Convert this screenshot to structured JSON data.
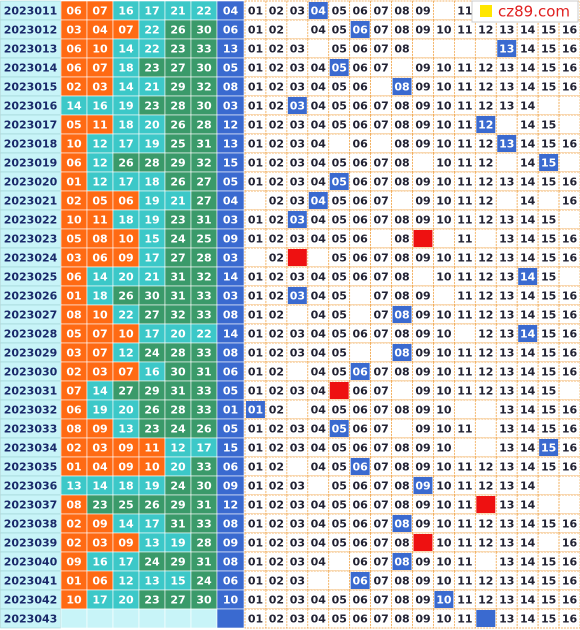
{
  "logo": "cz89.com",
  "rows": [
    {
      "issue": "2023011",
      "reds": [
        "06",
        "07",
        "16",
        "17",
        "21",
        "22"
      ],
      "blue": "04",
      "trend": [
        "01",
        "02",
        "03",
        {
          "text": "04",
          "mark": "blue"
        },
        "05",
        "06",
        "07",
        "08",
        "09",
        null,
        "11",
        null,
        null,
        null,
        null,
        null
      ]
    },
    {
      "issue": "2023012",
      "reds": [
        "03",
        "04",
        "07",
        "22",
        "26",
        "30"
      ],
      "blue": "06",
      "trend": [
        "01",
        "02",
        null,
        "04",
        "05",
        {
          "text": "06",
          "mark": "blue"
        },
        "07",
        "08",
        "09",
        "10",
        "11",
        "12",
        "13",
        "14",
        "15",
        "16"
      ]
    },
    {
      "issue": "2023013",
      "reds": [
        "06",
        "10",
        "14",
        "22",
        "23",
        "33"
      ],
      "blue": "13",
      "trend": [
        "01",
        "02",
        "03",
        null,
        "05",
        "06",
        "07",
        "08",
        null,
        null,
        null,
        null,
        {
          "text": "13",
          "mark": "blue"
        },
        "14",
        "15",
        "16"
      ]
    },
    {
      "issue": "2023014",
      "reds": [
        "06",
        "07",
        "18",
        "23",
        "27",
        "30"
      ],
      "blue": "05",
      "trend": [
        "01",
        "02",
        "03",
        "04",
        {
          "text": "05",
          "mark": "blue"
        },
        "06",
        "07",
        null,
        "09",
        "10",
        "11",
        "12",
        "13",
        "14",
        "15",
        "16"
      ]
    },
    {
      "issue": "2023015",
      "reds": [
        "02",
        "03",
        "14",
        "21",
        "29",
        "32"
      ],
      "blue": "08",
      "trend": [
        "01",
        "02",
        "03",
        "04",
        "05",
        "06",
        null,
        {
          "text": "08",
          "mark": "blue"
        },
        "09",
        "10",
        "11",
        "12",
        "13",
        "14",
        "15",
        "16"
      ]
    },
    {
      "issue": "2023016",
      "reds": [
        "14",
        "16",
        "19",
        "23",
        "28",
        "30"
      ],
      "blue": "03",
      "trend": [
        "01",
        "02",
        {
          "text": "03",
          "mark": "blue"
        },
        "04",
        "05",
        "06",
        "07",
        "08",
        "09",
        "10",
        "11",
        "12",
        "13",
        "14",
        null,
        null
      ]
    },
    {
      "issue": "2023017",
      "reds": [
        "05",
        "11",
        "18",
        "20",
        "26",
        "28"
      ],
      "blue": "12",
      "trend": [
        "01",
        "02",
        "03",
        "04",
        "05",
        "06",
        "07",
        "08",
        "09",
        "10",
        "11",
        {
          "text": "12",
          "mark": "blue"
        },
        null,
        "14",
        "15",
        null
      ]
    },
    {
      "issue": "2023018",
      "reds": [
        "10",
        "12",
        "17",
        "19",
        "25",
        "31"
      ],
      "blue": "13",
      "trend": [
        "01",
        "02",
        "03",
        "04",
        null,
        "06",
        null,
        "08",
        "09",
        "10",
        "11",
        "12",
        {
          "text": "13",
          "mark": "blue"
        },
        "14",
        "15",
        "16"
      ]
    },
    {
      "issue": "2023019",
      "reds": [
        "06",
        "12",
        "26",
        "28",
        "29",
        "32"
      ],
      "blue": "15",
      "trend": [
        "01",
        "02",
        "03",
        "04",
        "05",
        "06",
        "07",
        "08",
        null,
        "10",
        "11",
        "12",
        null,
        "14",
        {
          "text": "15",
          "mark": "blue"
        },
        null
      ]
    },
    {
      "issue": "2023020",
      "reds": [
        "01",
        "12",
        "17",
        "18",
        "26",
        "27"
      ],
      "blue": "05",
      "trend": [
        "01",
        "02",
        "03",
        "04",
        {
          "text": "05",
          "mark": "blue"
        },
        "06",
        "07",
        "08",
        "09",
        "10",
        "11",
        "12",
        "13",
        "14",
        "15",
        "16"
      ]
    },
    {
      "issue": "2023021",
      "reds": [
        "02",
        "05",
        "06",
        "19",
        "21",
        "27"
      ],
      "blue": "04",
      "trend": [
        null,
        "02",
        "03",
        {
          "text": "04",
          "mark": "blue"
        },
        "05",
        "06",
        "07",
        null,
        "09",
        "10",
        "11",
        "12",
        null,
        "14",
        null,
        "16"
      ]
    },
    {
      "issue": "2023022",
      "reds": [
        "10",
        "11",
        "18",
        "19",
        "23",
        "31"
      ],
      "blue": "03",
      "trend": [
        "01",
        "02",
        {
          "text": "03",
          "mark": "blue"
        },
        "04",
        "05",
        "06",
        "07",
        "08",
        "09",
        "10",
        "11",
        "12",
        "13",
        "14",
        "15",
        null
      ]
    },
    {
      "issue": "2023023",
      "reds": [
        "05",
        "08",
        "10",
        "15",
        "24",
        "25"
      ],
      "blue": "09",
      "trend": [
        "01",
        "02",
        "03",
        "04",
        "05",
        "06",
        null,
        "08",
        {
          "mark": "red"
        },
        null,
        "11",
        null,
        "13",
        "14",
        "15",
        "16"
      ]
    },
    {
      "issue": "2023024",
      "reds": [
        "03",
        "06",
        "09",
        "17",
        "27",
        "28"
      ],
      "blue": "03",
      "trend": [
        null,
        "02",
        {
          "mark": "red"
        },
        null,
        "05",
        "06",
        "07",
        "08",
        "09",
        "10",
        "11",
        "12",
        "13",
        "14",
        "15",
        "16"
      ]
    },
    {
      "issue": "2023025",
      "reds": [
        "06",
        "14",
        "20",
        "21",
        "31",
        "32"
      ],
      "blue": "14",
      "trend": [
        "01",
        "02",
        "03",
        "04",
        "05",
        "06",
        "07",
        "08",
        null,
        "10",
        "11",
        "12",
        "13",
        {
          "text": "14",
          "mark": "blue"
        },
        "15",
        null
      ]
    },
    {
      "issue": "2023026",
      "reds": [
        "01",
        "18",
        "26",
        "30",
        "31",
        "33"
      ],
      "blue": "03",
      "trend": [
        "01",
        "02",
        {
          "text": "03",
          "mark": "blue"
        },
        "04",
        "05",
        null,
        "07",
        "08",
        "09",
        null,
        "11",
        "12",
        "13",
        "14",
        "15",
        "16"
      ]
    },
    {
      "issue": "2023027",
      "reds": [
        "08",
        "10",
        "22",
        "27",
        "32",
        "33"
      ],
      "blue": "08",
      "trend": [
        "01",
        "02",
        null,
        "04",
        "05",
        null,
        "07",
        {
          "text": "08",
          "mark": "blue"
        },
        "09",
        "10",
        "11",
        "12",
        "13",
        "14",
        "15",
        "16"
      ]
    },
    {
      "issue": "2023028",
      "reds": [
        "05",
        "07",
        "10",
        "17",
        "20",
        "22"
      ],
      "blue": "14",
      "trend": [
        "01",
        "02",
        "03",
        "04",
        "05",
        "06",
        "07",
        "08",
        "09",
        "10",
        null,
        "12",
        "13",
        {
          "text": "14",
          "mark": "blue"
        },
        "15",
        "16"
      ]
    },
    {
      "issue": "2023029",
      "reds": [
        "03",
        "07",
        "12",
        "24",
        "28",
        "33"
      ],
      "blue": "08",
      "trend": [
        "01",
        "02",
        "03",
        "04",
        "05",
        null,
        null,
        {
          "text": "08",
          "mark": "blue"
        },
        "09",
        "10",
        "11",
        "12",
        "13",
        "14",
        "15",
        "16"
      ]
    },
    {
      "issue": "2023030",
      "reds": [
        "02",
        "03",
        "07",
        "16",
        "30",
        "31"
      ],
      "blue": "06",
      "trend": [
        "01",
        "02",
        null,
        "04",
        "05",
        {
          "text": "06",
          "mark": "blue"
        },
        "07",
        "08",
        "09",
        "10",
        "11",
        "12",
        "13",
        "14",
        "15",
        "16"
      ]
    },
    {
      "issue": "2023031",
      "reds": [
        "07",
        "14",
        "27",
        "29",
        "31",
        "33"
      ],
      "blue": "05",
      "trend": [
        "01",
        "02",
        "03",
        "04",
        {
          "mark": "red"
        },
        "06",
        "07",
        null,
        "09",
        "10",
        "11",
        "12",
        "13",
        "14",
        "15",
        null
      ]
    },
    {
      "issue": "2023032",
      "reds": [
        "06",
        "19",
        "20",
        "26",
        "28",
        "33"
      ],
      "blue": "01",
      "trend": [
        {
          "text": "01",
          "mark": "blue"
        },
        "02",
        null,
        "04",
        "05",
        "06",
        "07",
        "08",
        "09",
        "10",
        null,
        null,
        "13",
        "14",
        "15",
        "16"
      ]
    },
    {
      "issue": "2023033",
      "reds": [
        "08",
        "09",
        "13",
        "23",
        "24",
        "26"
      ],
      "blue": "05",
      "trend": [
        "01",
        "02",
        "03",
        "04",
        {
          "text": "05",
          "mark": "blue"
        },
        "06",
        "07",
        null,
        "09",
        "10",
        "11",
        null,
        "13",
        "14",
        "15",
        "16"
      ]
    },
    {
      "issue": "2023034",
      "reds": [
        "02",
        "03",
        "09",
        "11",
        "12",
        "17"
      ],
      "blue": "15",
      "trend": [
        "01",
        "02",
        "03",
        "04",
        "05",
        "06",
        "07",
        "08",
        "09",
        "10",
        null,
        null,
        "13",
        "14",
        {
          "text": "15",
          "mark": "blue"
        },
        "16"
      ]
    },
    {
      "issue": "2023035",
      "reds": [
        "01",
        "04",
        "09",
        "10",
        "20",
        "33"
      ],
      "blue": "06",
      "trend": [
        "01",
        "02",
        null,
        "04",
        "05",
        {
          "text": "06",
          "mark": "blue"
        },
        "07",
        "08",
        "09",
        "10",
        "11",
        "12",
        "13",
        "14",
        "15",
        "16"
      ]
    },
    {
      "issue": "2023036",
      "reds": [
        "13",
        "14",
        "18",
        "19",
        "24",
        "30"
      ],
      "blue": "09",
      "trend": [
        "01",
        "02",
        "03",
        null,
        "05",
        "06",
        "07",
        "08",
        {
          "text": "09",
          "mark": "blue"
        },
        "10",
        "11",
        "12",
        "13",
        "14",
        null,
        null
      ]
    },
    {
      "issue": "2023037",
      "reds": [
        "08",
        "23",
        "25",
        "26",
        "29",
        "31"
      ],
      "blue": "12",
      "trend": [
        "01",
        "02",
        "03",
        "04",
        "05",
        "06",
        "07",
        "08",
        "09",
        "10",
        "11",
        {
          "mark": "red"
        },
        "13",
        "14",
        null,
        null
      ]
    },
    {
      "issue": "2023038",
      "reds": [
        "02",
        "09",
        "14",
        "17",
        "31",
        "33"
      ],
      "blue": "08",
      "trend": [
        "01",
        "02",
        "03",
        "04",
        "05",
        "06",
        "07",
        {
          "text": "08",
          "mark": "blue"
        },
        "09",
        "10",
        "11",
        "12",
        "13",
        "14",
        "15",
        "16"
      ]
    },
    {
      "issue": "2023039",
      "reds": [
        "02",
        "03",
        "09",
        "13",
        "19",
        "28"
      ],
      "blue": "09",
      "trend": [
        "01",
        "02",
        "03",
        "04",
        "05",
        "06",
        "07",
        "08",
        {
          "mark": "red"
        },
        "10",
        "11",
        "12",
        "13",
        "14",
        null,
        "16"
      ]
    },
    {
      "issue": "2023040",
      "reds": [
        "09",
        "16",
        "17",
        "24",
        "29",
        "31"
      ],
      "blue": "08",
      "trend": [
        "01",
        "02",
        "03",
        "04",
        null,
        "06",
        "07",
        {
          "text": "08",
          "mark": "blue"
        },
        "09",
        "10",
        "11",
        null,
        "13",
        "14",
        "15",
        "16"
      ]
    },
    {
      "issue": "2023041",
      "reds": [
        "01",
        "06",
        "12",
        "13",
        "15",
        "24"
      ],
      "blue": "06",
      "trend": [
        "01",
        "02",
        "03",
        null,
        null,
        {
          "text": "06",
          "mark": "blue"
        },
        "07",
        "08",
        "09",
        "10",
        "11",
        "12",
        "13",
        "14",
        "15",
        "16"
      ]
    },
    {
      "issue": "2023042",
      "reds": [
        "10",
        "17",
        "20",
        "23",
        "27",
        "30"
      ],
      "blue": "10",
      "trend": [
        "01",
        "02",
        "03",
        "04",
        "05",
        "06",
        "07",
        "08",
        "09",
        {
          "text": "10",
          "mark": "blue"
        },
        "11",
        "12",
        "13",
        "14",
        "15",
        "16"
      ]
    },
    {
      "issue": "2023043",
      "reds": [],
      "blue": null,
      "trend": [
        "01",
        "02",
        "03",
        "04",
        "05",
        "06",
        "07",
        "08",
        "09",
        "10",
        "11",
        {
          "mark": "blue"
        },
        "13",
        "14",
        "15",
        "16"
      ]
    }
  ]
}
